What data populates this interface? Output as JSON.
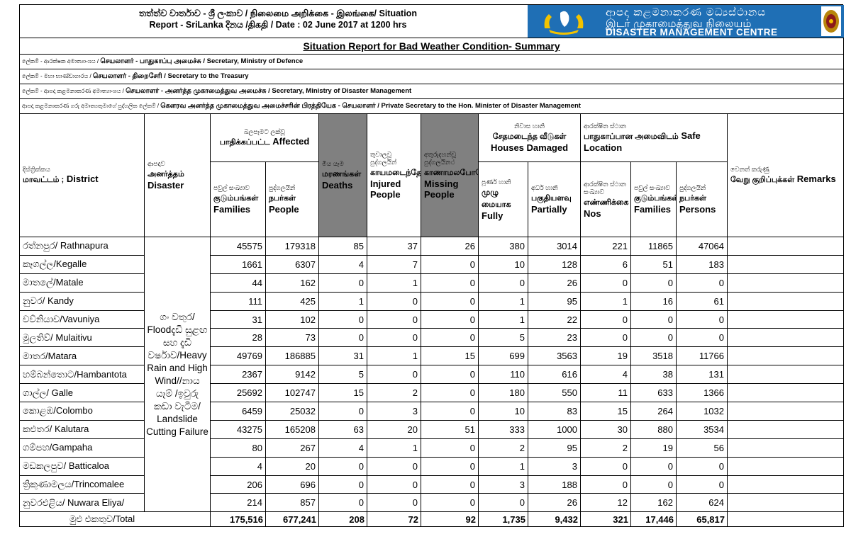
{
  "header": {
    "title_line1": "තත්ත්ව වාර්තාව - ශ්‍රී ලංකාව / நிலைமை அறிக்கை - இலங்கை/ Situation",
    "title_line2": "Report - SriLanka දිනය /திகதி / Date : 02 June 2017 at 1200 hrs",
    "banner_si": "ආපදා කළමනාකරණ මධ්‍යස්ථානය",
    "banner_ta": "இடர் முகாமைத்துவ நிலையம்",
    "banner_en": "DISASTER MANAGEMENT CENTRE"
  },
  "report_title": "Situation Report  for Bad Weather Condition- Summary",
  "addressees": [
    {
      "si": "ලේකම් - ආරක්ෂක අමාත්‍යාංශය / ",
      "rest": "செயலாளர் - பாதுகாப்பு அமைச்சு / Secretary, Ministry of Defence"
    },
    {
      "si": "ලේකම් - මහා භාණ්ඩාගාරය / ",
      "rest": "செயலாளர் - திறைசேரி / Secretary to the Treasury"
    },
    {
      "si": "ලේකම් - ආපදා කළමනාකරණ අමාත්‍යාංශය / ",
      "rest": "செயலாளர் - அனர்த்த முகாமைத்துவ அமைச்சு / Secretary, Ministry of Disaster Management"
    },
    {
      "si": "ආපදා කළමනාකරණ ගරු අමාත්‍යතුමාගේ පුද්ගලික ලේකම් / ",
      "rest": "கௌரவ அனர்த்த முகாமைத்துவ அமைச்சரின் பிரத்தியேக - செயலாளர் / Private Secretary to the Hon. Minister of Disaster Management"
    }
  ],
  "columns": {
    "district_si": "දිස්ත්‍රික්කය",
    "district_ta": "மாவட்டம் ;",
    "district_en": "District",
    "disaster_si": "ආපදාව",
    "disaster_ta": "அனர்த்தம்",
    "disaster_en": "Disaster",
    "affected_si": "බලපෑමට ලක්වූ",
    "affected_ta": "பாதிக்கப்பட்ட",
    "affected_en": "Affected",
    "families_si": "පවුල් සංඛ්‍යාව",
    "families_ta": "குடும்பங்கள்",
    "families_en": "Families",
    "people_si": "පුද්ගලයින්",
    "people_ta": "நபர்கள்",
    "people_en": "People",
    "deaths_si": "මිය යෑම",
    "deaths_ta": "மரணங்கள்",
    "deaths_en": "Deaths",
    "injured_si": "තුවාලවූ පුද්ගලයින්",
    "injured_ta": "காயமடைந்தோர்",
    "injured_en": "Injured People",
    "missing_si": "අතුරුදහන්වූ පුද්ගලයින்",
    "missing_ta": "காணாமலபோனோர்",
    "missing_en": "Missing People",
    "houses_si": "නිවාස හානි",
    "houses_ta": "சேதமடைந்த வீடுகள்",
    "houses_en": "Houses Damaged",
    "fully_si": "පූර්ණ හානි",
    "fully_ta": "முழு மையாக",
    "fully_en": "Fully",
    "partially_si": "අර්ධ හානි",
    "partially_ta": "பகுதியளவு",
    "partially_en": "Partially",
    "safe_si": "ආරක්ෂිත ස්ථාන",
    "safe_ta": "பாதுகாப்பான அமைவிடம்",
    "safe_en": "Safe Location",
    "nos_si": "ආරක්ෂිත ස්ථාන සංඛ්‍යාව",
    "nos_ta": "எண்ணிக்கை",
    "nos_en": "Nos",
    "sfam_si": "පවුල් සංඛ්‍යාව",
    "sfam_ta": "குடும்பங்கள்",
    "sfam_en": "Families",
    "persons_si": "පුද්ගලයින්",
    "persons_ta": "நபர்கள்",
    "persons_en": "Persons",
    "remarks_si": "වෙනත් කරුණු",
    "remarks_ta": "வேறு குறிப்புக்கள்",
    "remarks_en": "Remarks"
  },
  "disaster_text": "ගං වතුර/ Floodදැඩි සුළඟ සහ දැඩි වර්ෂාව/Heavy Rain and High Wind//නාය යෑම් /ඉවුරු කඩා වැටීම/ Landslide Cutting Failure",
  "rows": [
    {
      "district": "රත්නපුර/ Rathnapura",
      "v": [
        "45575",
        "179318",
        "85",
        "37",
        "26",
        "380",
        "3014",
        "221",
        "11865",
        "47064"
      ]
    },
    {
      "district": "කෑගල්ල/Kegalle",
      "v": [
        "1661",
        "6307",
        "4",
        "7",
        "0",
        "10",
        "128",
        "6",
        "51",
        "183"
      ]
    },
    {
      "district": "මාතලේ/Matale",
      "v": [
        "44",
        "162",
        "0",
        "1",
        "0",
        "0",
        "26",
        "0",
        "0",
        "0"
      ]
    },
    {
      "district": "නුවර/ Kandy",
      "v": [
        "111",
        "425",
        "1",
        "0",
        "0",
        "1",
        "95",
        "1",
        "16",
        "61"
      ]
    },
    {
      "district": "වව්නියාව/Vavuniya",
      "v": [
        "31",
        "102",
        "0",
        "0",
        "0",
        "1",
        "22",
        "0",
        "0",
        "0"
      ]
    },
    {
      "district": "මුලතිව්/ Mulaitivu",
      "v": [
        "28",
        "73",
        "0",
        "0",
        "0",
        "5",
        "23",
        "0",
        "0",
        "0"
      ]
    },
    {
      "district": "මාතර/Matara",
      "v": [
        "49769",
        "186885",
        "31",
        "1",
        "15",
        "699",
        "3563",
        "19",
        "3518",
        "11766"
      ]
    },
    {
      "district": "හම්බන්තොට/Hambantota",
      "v": [
        "2367",
        "9142",
        "5",
        "0",
        "0",
        "110",
        "616",
        "4",
        "38",
        "131"
      ]
    },
    {
      "district": "ගාල්ල/ Galle",
      "v": [
        "25692",
        "102747",
        "15",
        "2",
        "0",
        "180",
        "550",
        "11",
        "633",
        "1366"
      ]
    },
    {
      "district": "කොළඹ/Colombo",
      "v": [
        "6459",
        "25032",
        "0",
        "3",
        "0",
        "10",
        "83",
        "15",
        "264",
        "1032"
      ]
    },
    {
      "district": "කළුතර/ Kalutara",
      "v": [
        "43275",
        "165208",
        "63",
        "20",
        "51",
        "333",
        "1000",
        "30",
        "880",
        "3534"
      ]
    },
    {
      "district": "ගම්පහ/Gampaha",
      "v": [
        "80",
        "267",
        "4",
        "1",
        "0",
        "2",
        "95",
        "2",
        "19",
        "56"
      ]
    },
    {
      "district": "මඩකලපුව/ Batticaloa",
      "v": [
        "4",
        "20",
        "0",
        "0",
        "0",
        "1",
        "3",
        "0",
        "0",
        "0"
      ]
    },
    {
      "district": "ත්‍රිකුණාමලය/Trincomalee",
      "v": [
        "206",
        "696",
        "0",
        "0",
        "0",
        "3",
        "188",
        "0",
        "0",
        "0"
      ]
    },
    {
      "district": "නුවරඑළිය/ Nuwara Eliya/",
      "v": [
        "214",
        "857",
        "0",
        "0",
        "0",
        "0",
        "26",
        "12",
        "162",
        "624"
      ]
    }
  ],
  "total": {
    "label": "මුළු එකතුව/Total",
    "v": [
      "175,516",
      "677,241",
      "208",
      "72",
      "92",
      "1,735",
      "9,432",
      "321",
      "17,446",
      "65,817"
    ]
  },
  "colors": {
    "banner": "#1f6fb5",
    "grey_cols": "#808080"
  }
}
